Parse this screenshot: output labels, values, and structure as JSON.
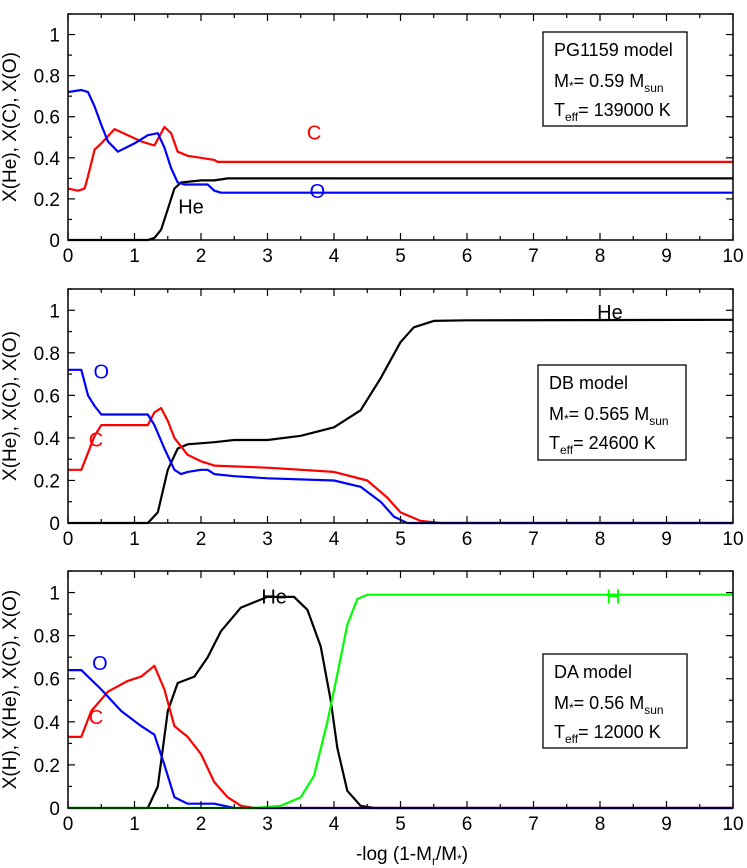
{
  "colors": {
    "He": "#000000",
    "C": "#ff0000",
    "O": "#0000ff",
    "H": "#00ff00"
  },
  "figure": {
    "xlabel": "-log (1-M",
    "xlabel_sub": "r",
    "xlabel_mid": "/M",
    "xlabel_star": "*",
    "xlabel_end": ")"
  },
  "chart_data": [
    {
      "type": "line",
      "title": "PG1159 model",
      "mass_label": "M",
      "mass_star": "*",
      "mass_value": "= 0.59 M",
      "mass_sub": "sun",
      "teff_label": "T",
      "teff_sub": "eff",
      "teff_value": "= 139000 K",
      "ylabel": "X(He), X(C), X(O)",
      "xlim": [
        0,
        10
      ],
      "ylim": [
        0,
        1.1
      ],
      "xticks": [
        "0",
        "1",
        "2",
        "3",
        "4",
        "5",
        "6",
        "7",
        "8",
        "9",
        "10"
      ],
      "yticks": [
        "0",
        "0.2",
        "0.4",
        "0.6",
        "0.8",
        "1"
      ],
      "series": [
        {
          "name": "He",
          "color_key": "He",
          "label": "He",
          "label_pos": [
            1.85,
            0.13
          ],
          "points": [
            [
              0,
              0
            ],
            [
              1.2,
              0
            ],
            [
              1.3,
              0.01
            ],
            [
              1.4,
              0.05
            ],
            [
              1.5,
              0.15
            ],
            [
              1.6,
              0.25
            ],
            [
              1.7,
              0.28
            ],
            [
              2.0,
              0.29
            ],
            [
              2.2,
              0.29
            ],
            [
              2.4,
              0.3
            ],
            [
              3,
              0.3
            ],
            [
              10,
              0.3
            ]
          ]
        },
        {
          "name": "C",
          "color_key": "C",
          "label": "C",
          "label_pos": [
            3.7,
            0.49
          ],
          "points": [
            [
              0,
              0.25
            ],
            [
              0.15,
              0.24
            ],
            [
              0.25,
              0.25
            ],
            [
              0.3,
              0.31
            ],
            [
              0.4,
              0.44
            ],
            [
              0.5,
              0.47
            ],
            [
              0.7,
              0.54
            ],
            [
              0.9,
              0.51
            ],
            [
              1.1,
              0.48
            ],
            [
              1.3,
              0.46
            ],
            [
              1.45,
              0.55
            ],
            [
              1.55,
              0.52
            ],
            [
              1.65,
              0.43
            ],
            [
              1.8,
              0.41
            ],
            [
              2.2,
              0.39
            ],
            [
              2.25,
              0.38
            ],
            [
              3,
              0.38
            ],
            [
              10,
              0.38
            ]
          ]
        },
        {
          "name": "O",
          "color_key": "O",
          "label": "O",
          "label_pos": [
            3.75,
            0.205
          ],
          "points": [
            [
              0,
              0.72
            ],
            [
              0.2,
              0.73
            ],
            [
              0.3,
              0.72
            ],
            [
              0.4,
              0.65
            ],
            [
              0.5,
              0.56
            ],
            [
              0.6,
              0.48
            ],
            [
              0.75,
              0.43
            ],
            [
              1.0,
              0.47
            ],
            [
              1.2,
              0.51
            ],
            [
              1.35,
              0.52
            ],
            [
              1.45,
              0.45
            ],
            [
              1.55,
              0.35
            ],
            [
              1.65,
              0.28
            ],
            [
              1.75,
              0.27
            ],
            [
              2.1,
              0.27
            ],
            [
              2.2,
              0.24
            ],
            [
              2.3,
              0.23
            ],
            [
              10,
              0.23
            ]
          ]
        }
      ]
    },
    {
      "type": "line",
      "title": "DB model",
      "mass_label": "M",
      "mass_star": "*",
      "mass_value": "= 0.565 M",
      "mass_sub": "sun",
      "teff_label": "T",
      "teff_sub": "eff",
      "teff_value": "= 24600 K",
      "ylabel": "X(He), X(C), X(O)",
      "xlim": [
        0,
        10
      ],
      "ylim": [
        0,
        1.1
      ],
      "xticks": [
        "0",
        "1",
        "2",
        "3",
        "4",
        "5",
        "6",
        "7",
        "8",
        "9",
        "10"
      ],
      "yticks": [
        "0",
        "0.2",
        "0.4",
        "0.6",
        "0.8",
        "1"
      ],
      "series": [
        {
          "name": "He",
          "color_key": "He",
          "label": "He",
          "label_pos": [
            8.15,
            0.96
          ],
          "points": [
            [
              0,
              0
            ],
            [
              1.2,
              0
            ],
            [
              1.35,
              0.05
            ],
            [
              1.5,
              0.25
            ],
            [
              1.65,
              0.35
            ],
            [
              1.8,
              0.37
            ],
            [
              2.2,
              0.38
            ],
            [
              2.5,
              0.39
            ],
            [
              3,
              0.39
            ],
            [
              3.5,
              0.41
            ],
            [
              4,
              0.45
            ],
            [
              4.4,
              0.53
            ],
            [
              4.7,
              0.68
            ],
            [
              5.0,
              0.85
            ],
            [
              5.2,
              0.92
            ],
            [
              5.5,
              0.95
            ],
            [
              6,
              0.953
            ],
            [
              10,
              0.955
            ]
          ]
        },
        {
          "name": "C",
          "color_key": "C",
          "label": "C",
          "label_pos": [
            0.42,
            0.36
          ],
          "points": [
            [
              0,
              0.25
            ],
            [
              0.2,
              0.25
            ],
            [
              0.3,
              0.33
            ],
            [
              0.4,
              0.41
            ],
            [
              0.5,
              0.46
            ],
            [
              1.2,
              0.46
            ],
            [
              1.3,
              0.52
            ],
            [
              1.4,
              0.54
            ],
            [
              1.5,
              0.48
            ],
            [
              1.6,
              0.4
            ],
            [
              1.8,
              0.32
            ],
            [
              2.0,
              0.29
            ],
            [
              2.2,
              0.27
            ],
            [
              3,
              0.26
            ],
            [
              4,
              0.24
            ],
            [
              4.5,
              0.2
            ],
            [
              4.8,
              0.12
            ],
            [
              5.0,
              0.05
            ],
            [
              5.3,
              0.01
            ],
            [
              5.6,
              0.0
            ],
            [
              10,
              0
            ]
          ]
        },
        {
          "name": "O",
          "color_key": "O",
          "label": "O",
          "label_pos": [
            0.5,
            0.68
          ],
          "points": [
            [
              0,
              0.72
            ],
            [
              0.2,
              0.72
            ],
            [
              0.3,
              0.6
            ],
            [
              0.4,
              0.55
            ],
            [
              0.5,
              0.51
            ],
            [
              1.2,
              0.51
            ],
            [
              1.3,
              0.46
            ],
            [
              1.45,
              0.35
            ],
            [
              1.6,
              0.25
            ],
            [
              1.7,
              0.23
            ],
            [
              1.8,
              0.24
            ],
            [
              2.0,
              0.25
            ],
            [
              2.1,
              0.25
            ],
            [
              2.2,
              0.23
            ],
            [
              2.5,
              0.22
            ],
            [
              3,
              0.21
            ],
            [
              4,
              0.2
            ],
            [
              4.4,
              0.17
            ],
            [
              4.7,
              0.1
            ],
            [
              4.9,
              0.03
            ],
            [
              5.1,
              0.0
            ],
            [
              10,
              0
            ]
          ]
        }
      ]
    },
    {
      "type": "line",
      "title": "DA model",
      "mass_label": "M",
      "mass_star": "*",
      "mass_value": "= 0.56 M",
      "mass_sub": "sun",
      "teff_label": "T",
      "teff_sub": "eff",
      "teff_value": "= 12000 K",
      "ylabel": "X(H), X(He), X(C), X(O)",
      "xlim": [
        0,
        10
      ],
      "ylim": [
        0,
        1.1
      ],
      "xticks": [
        "0",
        "1",
        "2",
        "3",
        "4",
        "5",
        "6",
        "7",
        "8",
        "9",
        "10"
      ],
      "yticks": [
        "0",
        "0.2",
        "0.4",
        "0.6",
        "0.8",
        "1"
      ],
      "series": [
        {
          "name": "He",
          "color_key": "He",
          "label": "He",
          "label_pos": [
            3.1,
            0.95
          ],
          "points": [
            [
              0,
              0
            ],
            [
              1.2,
              0
            ],
            [
              1.35,
              0.1
            ],
            [
              1.5,
              0.45
            ],
            [
              1.65,
              0.58
            ],
            [
              1.9,
              0.61
            ],
            [
              2.1,
              0.7
            ],
            [
              2.3,
              0.82
            ],
            [
              2.6,
              0.93
            ],
            [
              3.0,
              0.98
            ],
            [
              3.4,
              0.98
            ],
            [
              3.6,
              0.92
            ],
            [
              3.8,
              0.75
            ],
            [
              3.95,
              0.5
            ],
            [
              4.05,
              0.28
            ],
            [
              4.2,
              0.08
            ],
            [
              4.4,
              0.01
            ],
            [
              4.6,
              0
            ],
            [
              10,
              0
            ]
          ]
        },
        {
          "name": "C",
          "color_key": "C",
          "label": "C",
          "label_pos": [
            0.42,
            0.39
          ],
          "points": [
            [
              0,
              0.33
            ],
            [
              0.2,
              0.33
            ],
            [
              0.35,
              0.45
            ],
            [
              0.6,
              0.54
            ],
            [
              0.9,
              0.59
            ],
            [
              1.1,
              0.61
            ],
            [
              1.3,
              0.66
            ],
            [
              1.45,
              0.55
            ],
            [
              1.6,
              0.38
            ],
            [
              1.8,
              0.33
            ],
            [
              2.0,
              0.25
            ],
            [
              2.2,
              0.12
            ],
            [
              2.4,
              0.05
            ],
            [
              2.6,
              0.01
            ],
            [
              2.8,
              0
            ],
            [
              10,
              0
            ]
          ]
        },
        {
          "name": "O",
          "color_key": "O",
          "label": "O",
          "label_pos": [
            0.48,
            0.64
          ],
          "points": [
            [
              0,
              0.64
            ],
            [
              0.2,
              0.64
            ],
            [
              0.5,
              0.55
            ],
            [
              0.8,
              0.45
            ],
            [
              1.1,
              0.38
            ],
            [
              1.3,
              0.34
            ],
            [
              1.45,
              0.2
            ],
            [
              1.6,
              0.05
            ],
            [
              1.8,
              0.02
            ],
            [
              2.2,
              0.02
            ],
            [
              2.5,
              0.0
            ],
            [
              10,
              0
            ]
          ]
        },
        {
          "name": "H",
          "color_key": "H",
          "label": "H",
          "label_pos": [
            8.2,
            0.95
          ],
          "points": [
            [
              0,
              0
            ],
            [
              2.8,
              0
            ],
            [
              3.2,
              0.01
            ],
            [
              3.5,
              0.05
            ],
            [
              3.7,
              0.15
            ],
            [
              3.9,
              0.4
            ],
            [
              4.05,
              0.62
            ],
            [
              4.2,
              0.85
            ],
            [
              4.35,
              0.97
            ],
            [
              4.5,
              0.99
            ],
            [
              10,
              0.99
            ]
          ]
        }
      ]
    }
  ]
}
